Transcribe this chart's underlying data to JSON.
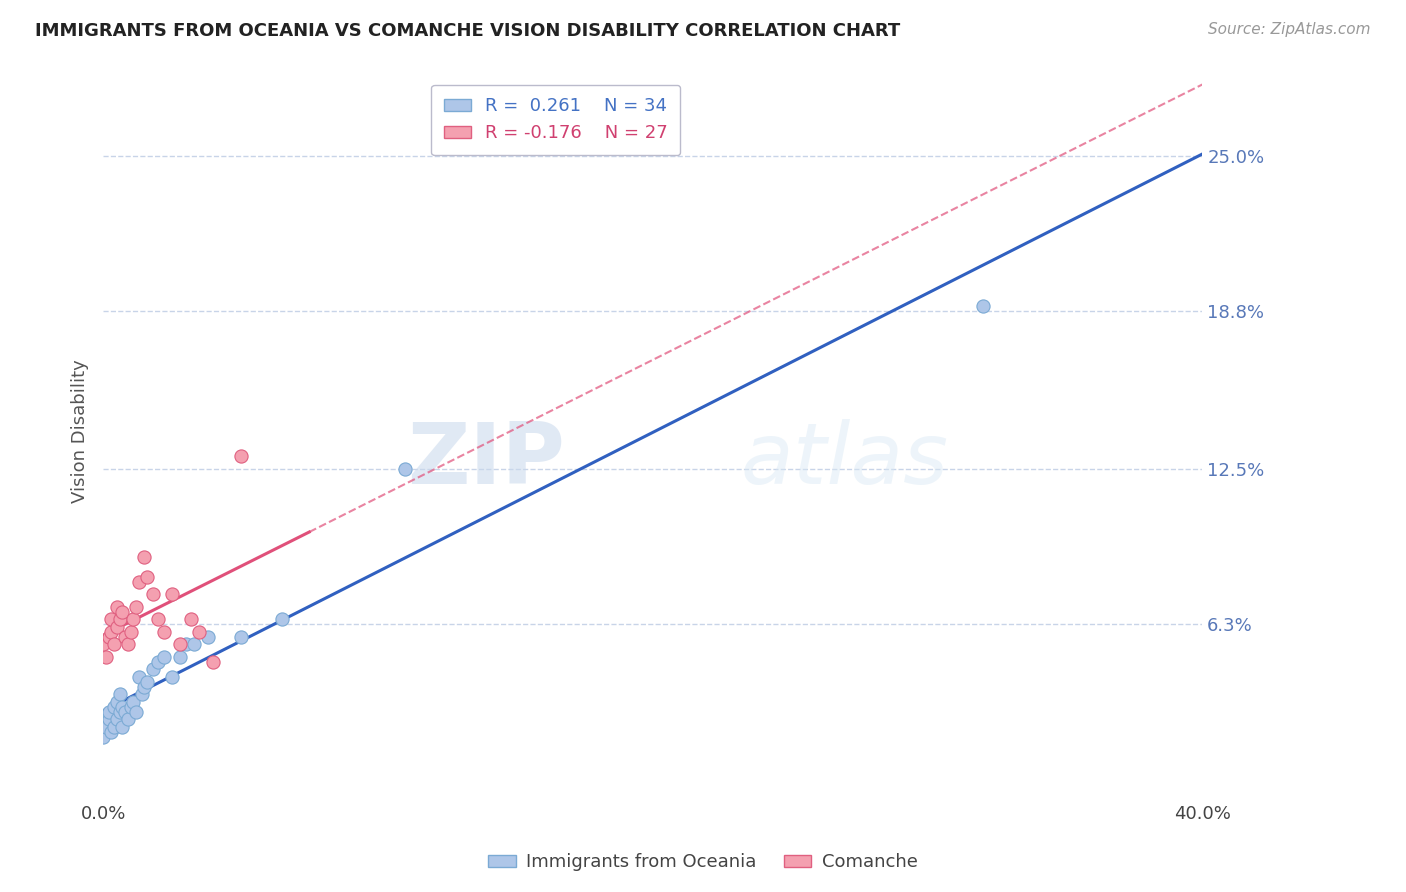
{
  "title": "IMMIGRANTS FROM OCEANIA VS COMANCHE VISION DISABILITY CORRELATION CHART",
  "source": "Source: ZipAtlas.com",
  "ylabel": "Vision Disability",
  "legend_entries": [
    {
      "label": "Immigrants from Oceania",
      "color": "#aec6e8",
      "edge": "#7baad4",
      "R": "0.261",
      "N": "34"
    },
    {
      "label": "Comanche",
      "color": "#f4a0b0",
      "edge": "#e06080",
      "R": "-0.176",
      "N": "27"
    }
  ],
  "right_ytick_labels": [
    "25.0%",
    "18.8%",
    "12.5%",
    "6.3%"
  ],
  "right_ytick_values": [
    0.25,
    0.188,
    0.125,
    0.063
  ],
  "xmin": 0.0,
  "xmax": 0.4,
  "ymin": -0.005,
  "ymax": 0.285,
  "background_color": "#ffffff",
  "grid_color": "#c8d4e8",
  "blue_line_color": "#3060c0",
  "pink_line_color": "#e0507a",
  "blue_scatter_x": [
    0.0,
    0.001,
    0.002,
    0.002,
    0.003,
    0.004,
    0.004,
    0.005,
    0.005,
    0.006,
    0.006,
    0.007,
    0.007,
    0.008,
    0.009,
    0.01,
    0.011,
    0.012,
    0.013,
    0.014,
    0.015,
    0.016,
    0.018,
    0.02,
    0.022,
    0.025,
    0.028,
    0.03,
    0.033,
    0.038,
    0.05,
    0.065,
    0.11,
    0.32
  ],
  "blue_scatter_y": [
    0.018,
    0.022,
    0.025,
    0.028,
    0.02,
    0.022,
    0.03,
    0.025,
    0.032,
    0.028,
    0.035,
    0.022,
    0.03,
    0.028,
    0.025,
    0.03,
    0.032,
    0.028,
    0.042,
    0.035,
    0.038,
    0.04,
    0.045,
    0.048,
    0.05,
    0.042,
    0.05,
    0.055,
    0.055,
    0.058,
    0.058,
    0.065,
    0.125,
    0.19
  ],
  "pink_scatter_x": [
    0.0,
    0.001,
    0.002,
    0.003,
    0.003,
    0.004,
    0.005,
    0.005,
    0.006,
    0.007,
    0.008,
    0.009,
    0.01,
    0.011,
    0.012,
    0.013,
    0.015,
    0.016,
    0.018,
    0.02,
    0.022,
    0.025,
    0.028,
    0.032,
    0.035,
    0.04,
    0.05
  ],
  "pink_scatter_y": [
    0.055,
    0.05,
    0.058,
    0.06,
    0.065,
    0.055,
    0.07,
    0.062,
    0.065,
    0.068,
    0.058,
    0.055,
    0.06,
    0.065,
    0.07,
    0.08,
    0.09,
    0.082,
    0.075,
    0.065,
    0.06,
    0.075,
    0.055,
    0.065,
    0.06,
    0.048,
    0.13
  ]
}
